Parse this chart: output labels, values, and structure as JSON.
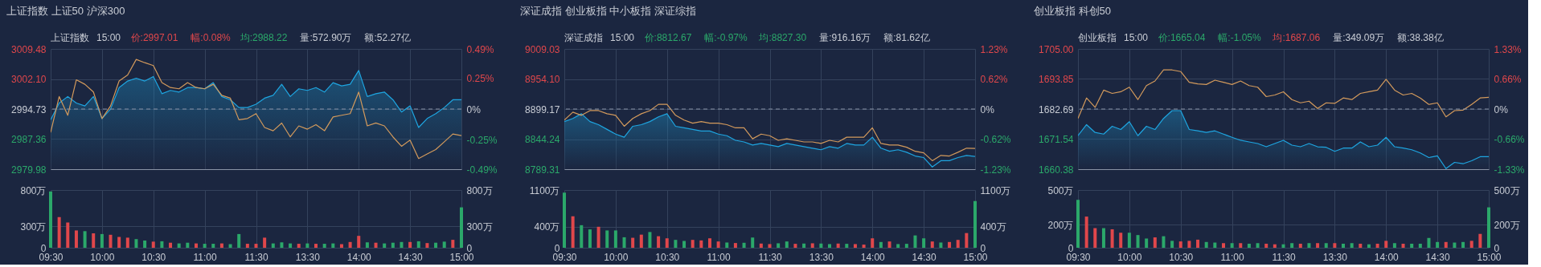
{
  "chart_data": [
    {
      "type": "line",
      "title": "上证指数   上证50   沪深300",
      "annotations": [
        "上证指数",
        "15:00",
        "价:2997.01",
        "幅:0.08%",
        "均:2988.22",
        "量:572.90万",
        "额:52.27亿"
      ],
      "categories": [
        null,
        null,
        null,
        null,
        null,
        null,
        null,
        null,
        null,
        null,
        null,
        null,
        null,
        null,
        null,
        null,
        null,
        null,
        null,
        null,
        null,
        null,
        null,
        null,
        null,
        null,
        null,
        null,
        null,
        null,
        null,
        null,
        null,
        null,
        null,
        null,
        null,
        null,
        null,
        null,
        null,
        null,
        null,
        null,
        null,
        null,
        null,
        null,
        null
      ],
      "series": [
        {
          "type": "area",
          "color": "#1ea5e0",
          "values": [
            2992.1,
            2996.2,
            2997.8,
            2996.2,
            2995.5,
            2997.8,
            2992.4,
            2994.7,
            3000.0,
            3001.6,
            3002.3,
            3001.6,
            3002.7,
            2998.5,
            2999.3,
            2998.9,
            3000.0,
            3000.0,
            2999.7,
            3001.2,
            2997.8,
            2997.0,
            2995.1,
            2995.1,
            2995.9,
            2997.4,
            2998.1,
            3000.8,
            2997.8,
            2999.7,
            2999.3,
            3000.0,
            2998.9,
            3001.2,
            3000.4,
            3000.8,
            3004.2,
            2997.8,
            2998.5,
            2998.9,
            2997.0,
            2994.0,
            2995.5,
            2990.2,
            2992.4,
            2993.6,
            2995.1,
            2997.0,
            2997.01
          ]
        },
        {
          "type": "line",
          "color": "#d39a5c",
          "values": [
            2989.0,
            2997.8,
            2993.2,
            3001.9,
            3000.8,
            2998.9,
            2992.4,
            2995.5,
            3001.6,
            3003.1,
            3006.9,
            3006.1,
            3005.4,
            3001.2,
            3000.0,
            2999.7,
            3001.2,
            3000.0,
            2999.7,
            3000.8,
            2998.1,
            2997.4,
            2992.1,
            2992.4,
            2993.6,
            2990.2,
            2989.4,
            2991.3,
            2987.9,
            2990.6,
            2989.8,
            2990.9,
            2989.4,
            2992.8,
            2993.2,
            2993.6,
            2998.9,
            2990.6,
            2991.3,
            2990.6,
            2987.9,
            2985.6,
            2987.1,
            2982.6,
            2983.7,
            2984.8,
            2986.7,
            2988.6,
            2988.22
          ]
        }
      ],
      "ylim": [
        2979.98,
        3009.48
      ],
      "yticks": [
        2979.98,
        2987.36,
        2994.73,
        {
          "value": 3002.1,
          "label": "3002.10"
        },
        3009.48
      ],
      "y2lim": [
        -0.49,
        0.49
      ],
      "y2ticks": [
        {
          "value": -0.49,
          "label": "-0.49%"
        },
        {
          "value": -0.25,
          "label": "-0.25%"
        },
        {
          "value": 0,
          "label": "0%"
        },
        {
          "value": 0.25,
          "label": "0.25%"
        },
        {
          "value": 0.49,
          "label": "0.49%"
        }
      ],
      "ref_lines": [
        {
          "axis": "y",
          "value": 2994.73,
          "line_style": "dashed",
          "color": "#8a93a6"
        }
      ],
      "grid": true,
      "tick_labels": "y"
    },
    {
      "type": "bar",
      "categories": [
        "09:30",
        null,
        null,
        null,
        null,
        null,
        "10:00",
        null,
        null,
        null,
        null,
        null,
        "10:30",
        null,
        null,
        null,
        null,
        null,
        "11:00",
        null,
        null,
        null,
        null,
        null,
        "11:30",
        null,
        null,
        null,
        null,
        null,
        "13:30",
        null,
        null,
        null,
        null,
        null,
        "14:00",
        null,
        null,
        null,
        null,
        null,
        "14:30",
        null,
        null,
        null,
        null,
        null,
        "15:00"
      ],
      "values": [
        780,
        425,
        350,
        240,
        230,
        200,
        190,
        180,
        150,
        140,
        120,
        100,
        85,
        90,
        70,
        60,
        70,
        60,
        55,
        55,
        60,
        50,
        190,
        55,
        55,
        140,
        60,
        75,
        60,
        55,
        60,
        55,
        55,
        60,
        50,
        80,
        165,
        75,
        70,
        60,
        70,
        80,
        80,
        90,
        65,
        70,
        85,
        110,
        560
      ],
      "colors": [
        "#2ba86a",
        "#e0474b",
        "#e0474b",
        "#e0474b",
        "#2ba86a",
        "#e0474b",
        "#2ba86a",
        "#e0474b",
        "#e0474b",
        "#e0474b",
        "#2ba86a",
        "#2ba86a",
        "#e0474b",
        "#2ba86a",
        "#e0474b",
        "#2ba86a",
        "#2ba86a",
        "#e0474b",
        "#2ba86a",
        "#2ba86a",
        "#e0474b",
        "#2ba86a",
        "#2ba86a",
        "#e0474b",
        "#e0474b",
        "#e0474b",
        "#2ba86a",
        "#2ba86a",
        "#2ba86a",
        "#e0474b",
        "#2ba86a",
        "#e0474b",
        "#2ba86a",
        "#2ba86a",
        "#e0474b",
        "#e0474b",
        "#e0474b",
        "#2ba86a",
        "#e0474b",
        "#2ba86a",
        "#2ba86a",
        "#2ba86a",
        "#e0474b",
        "#2ba86a",
        "#e0474b",
        "#2ba86a",
        "#2ba86a",
        "#e0474b",
        "#2ba86a"
      ],
      "ylim": [
        0,
        800
      ],
      "yticks": [
        0,
        {
          "value": 300,
          "label": "300万"
        },
        {
          "value": 800,
          "label": "800万"
        }
      ],
      "y2lim": [
        0,
        800
      ],
      "y2ticks": [
        0,
        {
          "value": 300,
          "label": "300万"
        },
        {
          "value": 800,
          "label": "800万"
        }
      ],
      "grid": true
    },
    {
      "type": "line",
      "title": "深证成指   创业板指   中小板指   深证综指",
      "annotations": [
        "深证成指",
        "15:00",
        "价:8812.67",
        "幅:-0.97%",
        "均:8827.30",
        "量:916.16万",
        "额:81.62亿"
      ],
      "categories": [
        null,
        null,
        null,
        null,
        null,
        null,
        null,
        null,
        null,
        null,
        null,
        null,
        null,
        null,
        null,
        null,
        null,
        null,
        null,
        null,
        null,
        null,
        null,
        null,
        null,
        null,
        null,
        null,
        null,
        null,
        null,
        null,
        null,
        null,
        null,
        null,
        null,
        null,
        null,
        null,
        null,
        null,
        null,
        null,
        null,
        null,
        null,
        null,
        null
      ],
      "series": [
        {
          "type": "area",
          "color": "#1ea5e0",
          "values": [
            8876.3,
            8882.0,
            8890.6,
            8876.3,
            8870.6,
            8862.0,
            8853.4,
            8847.7,
            8867.7,
            8870.6,
            8876.3,
            8884.9,
            8890.6,
            8867.7,
            8864.8,
            8862.0,
            8859.1,
            8859.1,
            8853.4,
            8850.5,
            8842.0,
            8839.1,
            8833.4,
            8836.3,
            8833.4,
            8830.5,
            8836.3,
            8833.4,
            8830.5,
            8827.7,
            8824.8,
            8830.5,
            8827.7,
            8836.3,
            8833.4,
            8833.4,
            8847.7,
            8827.7,
            8822.0,
            8824.8,
            8820.2,
            8813.4,
            8810.5,
            8793.3,
            8804.8,
            8804.8,
            8810.5,
            8814.5,
            8812.67
          ]
        },
        {
          "type": "line",
          "color": "#d39a5c",
          "values": [
            8879.1,
            8893.5,
            8887.7,
            8896.3,
            8896.3,
            8890.6,
            8887.7,
            8867.7,
            8882.0,
            8890.6,
            8896.3,
            8907.8,
            8907.8,
            8887.7,
            8879.1,
            8873.4,
            8876.3,
            8873.4,
            8873.4,
            8870.6,
            8864.8,
            8864.8,
            8844.8,
            8853.4,
            8850.5,
            8842.0,
            8844.8,
            8842.0,
            8839.1,
            8839.1,
            8836.3,
            8842.0,
            8839.1,
            8847.7,
            8847.7,
            8847.7,
            8864.8,
            8836.3,
            8833.4,
            8833.4,
            8829.4,
            8822.0,
            8819.1,
            8804.8,
            8814.5,
            8813.4,
            8820.2,
            8827.7,
            8827.3
          ]
        }
      ],
      "ylim": [
        8789.31,
        9009.03
      ],
      "yticks": [
        8789.31,
        8844.24,
        8899.17,
        {
          "value": 8954.1,
          "label": "8954.10"
        },
        9009.03
      ],
      "y2lim": [
        -1.23,
        1.23
      ],
      "y2ticks": [
        {
          "value": -1.23,
          "label": "-1.23%"
        },
        {
          "value": -0.62,
          "label": "-0.62%"
        },
        {
          "value": 0,
          "label": "0%"
        },
        {
          "value": 0.62,
          "label": "0.62%"
        },
        {
          "value": 1.23,
          "label": "1.23%"
        }
      ],
      "ref_lines": [
        {
          "axis": "y",
          "value": 8899.17,
          "line_style": "dashed",
          "color": "#8a93a6"
        }
      ],
      "grid": true,
      "tick_labels": "y"
    },
    {
      "type": "bar",
      "categories": [
        "09:30",
        null,
        null,
        null,
        null,
        null,
        "10:00",
        null,
        null,
        null,
        null,
        null,
        "10:30",
        null,
        null,
        null,
        null,
        null,
        "11:00",
        null,
        null,
        null,
        null,
        null,
        "11:30",
        null,
        null,
        null,
        null,
        null,
        "13:30",
        null,
        null,
        null,
        null,
        null,
        "14:00",
        null,
        null,
        null,
        null,
        null,
        "14:30",
        null,
        null,
        null,
        null,
        null,
        "15:00"
      ],
      "values": [
        1050,
        600,
        430,
        350,
        400,
        330,
        330,
        200,
        190,
        250,
        300,
        220,
        180,
        150,
        130,
        150,
        140,
        180,
        120,
        100,
        90,
        95,
        195,
        80,
        70,
        85,
        120,
        75,
        80,
        85,
        80,
        70,
        80,
        75,
        70,
        60,
        180,
        110,
        120,
        70,
        75,
        235,
        180,
        120,
        100,
        110,
        150,
        280,
        890
      ],
      "colors": [
        "#2ba86a",
        "#e0474b",
        "#2ba86a",
        "#2ba86a",
        "#e0474b",
        "#2ba86a",
        "#2ba86a",
        "#2ba86a",
        "#e0474b",
        "#e0474b",
        "#2ba86a",
        "#e0474b",
        "#e0474b",
        "#2ba86a",
        "#2ba86a",
        "#e0474b",
        "#e0474b",
        "#e0474b",
        "#e0474b",
        "#2ba86a",
        "#e0474b",
        "#2ba86a",
        "#2ba86a",
        "#e0474b",
        "#e0474b",
        "#2ba86a",
        "#2ba86a",
        "#e0474b",
        "#2ba86a",
        "#e0474b",
        "#2ba86a",
        "#2ba86a",
        "#e0474b",
        "#2ba86a",
        "#e0474b",
        "#e0474b",
        "#e0474b",
        "#2ba86a",
        "#e0474b",
        "#2ba86a",
        "#2ba86a",
        "#2ba86a",
        "#2ba86a",
        "#e0474b",
        "#2ba86a",
        "#e0474b",
        "#e0474b",
        "#e0474b",
        "#2ba86a"
      ],
      "ylim": [
        0,
        1100
      ],
      "yticks": [
        0,
        {
          "value": 400,
          "label": "400万"
        },
        {
          "value": 1100,
          "label": "1100万"
        }
      ],
      "y2lim": [
        0,
        1100
      ],
      "y2ticks": [
        0,
        {
          "value": 400,
          "label": "400万"
        },
        {
          "value": 1100,
          "label": "1100万"
        }
      ],
      "grid": true
    },
    {
      "type": "line",
      "title": "创业板指   科创50",
      "annotations": [
        "创业板指",
        "15:00",
        "价:1665.04",
        "幅:-1.05%",
        "均:1687.06",
        "量:349.09万",
        "额:38.38亿"
      ],
      "categories": [
        null,
        null,
        null,
        null,
        null,
        null,
        null,
        null,
        null,
        null,
        null,
        null,
        null,
        null,
        null,
        null,
        null,
        null,
        null,
        null,
        null,
        null,
        null,
        null,
        null,
        null,
        null,
        null,
        null,
        null,
        null,
        null,
        null,
        null,
        null,
        null,
        null,
        null,
        null,
        null,
        null,
        null,
        null,
        null,
        null,
        null,
        null,
        null,
        null
      ],
      "series": [
        {
          "type": "area",
          "color": "#1ea5e0",
          "values": [
            1672.8,
            1676.9,
            1674.0,
            1673.4,
            1676.3,
            1675.1,
            1678.0,
            1672.8,
            1676.3,
            1675.1,
            1679.2,
            1682.1,
            1682.1,
            1675.1,
            1674.6,
            1674.0,
            1674.6,
            1673.4,
            1672.2,
            1671.1,
            1670.5,
            1669.9,
            1668.7,
            1669.9,
            1671.1,
            1669.3,
            1668.7,
            1669.9,
            1668.7,
            1668.5,
            1667.0,
            1668.2,
            1668.2,
            1670.5,
            1668.7,
            1669.3,
            1672.2,
            1668.7,
            1668.2,
            1667.6,
            1666.4,
            1664.7,
            1665.3,
            1660.6,
            1662.9,
            1662.4,
            1663.5,
            1665.0,
            1665.04
          ]
        },
        {
          "type": "line",
          "color": "#d39a5c",
          "values": [
            1679.2,
            1686.8,
            1683.3,
            1689.7,
            1688.5,
            1689.1,
            1690.8,
            1686.2,
            1691.4,
            1693.1,
            1697.2,
            1697.2,
            1696.6,
            1692.6,
            1692.0,
            1691.8,
            1693.4,
            1692.6,
            1691.8,
            1693.1,
            1691.4,
            1690.8,
            1687.3,
            1687.9,
            1689.1,
            1686.2,
            1685.0,
            1685.6,
            1682.9,
            1685.0,
            1684.8,
            1686.8,
            1686.2,
            1688.5,
            1689.1,
            1689.7,
            1693.7,
            1689.7,
            1687.9,
            1688.5,
            1686.8,
            1684.4,
            1685.0,
            1679.8,
            1682.1,
            1682.3,
            1684.4,
            1686.8,
            1687.06
          ]
        }
      ],
      "ylim": [
        1660.38,
        1705
      ],
      "yticks": [
        1660.38,
        1671.54,
        1682.69,
        1693.85,
        {
          "value": 1705,
          "label": "1705.00"
        }
      ],
      "y2lim": [
        -1.33,
        1.33
      ],
      "y2ticks": [
        {
          "value": -1.33,
          "label": "-1.33%"
        },
        {
          "value": -0.66,
          "label": "-0.66%"
        },
        {
          "value": 0,
          "label": "0%"
        },
        {
          "value": 0.66,
          "label": "0.66%"
        },
        {
          "value": 1.33,
          "label": "1.33%"
        }
      ],
      "ref_lines": [
        {
          "axis": "y",
          "value": 1682.69,
          "line_style": "dashed",
          "color": "#8a93a6"
        }
      ],
      "grid": true,
      "tick_labels": "y"
    },
    {
      "type": "bar",
      "categories": [
        "09:30",
        null,
        null,
        null,
        null,
        null,
        "10:00",
        null,
        null,
        null,
        null,
        null,
        "10:30",
        null,
        null,
        null,
        null,
        null,
        "11:00",
        null,
        null,
        null,
        null,
        null,
        "11:30",
        null,
        null,
        null,
        null,
        null,
        "13:30",
        null,
        null,
        null,
        null,
        null,
        "14:00",
        null,
        null,
        null,
        null,
        null,
        "14:30",
        null,
        null,
        null,
        null,
        null,
        "15:00"
      ],
      "values": [
        415,
        270,
        170,
        170,
        160,
        130,
        130,
        110,
        80,
        90,
        100,
        60,
        55,
        60,
        70,
        50,
        45,
        40,
        40,
        40,
        35,
        40,
        35,
        30,
        30,
        40,
        35,
        40,
        40,
        40,
        40,
        35,
        40,
        35,
        30,
        35,
        60,
        40,
        35,
        35,
        35,
        85,
        50,
        50,
        45,
        50,
        60,
        120,
        350
      ],
      "colors": [
        "#2ba86a",
        "#e0474b",
        "#e0474b",
        "#2ba86a",
        "#e0474b",
        "#e0474b",
        "#2ba86a",
        "#2ba86a",
        "#2ba86a",
        "#e0474b",
        "#2ba86a",
        "#2ba86a",
        "#e0474b",
        "#e0474b",
        "#e0474b",
        "#2ba86a",
        "#2ba86a",
        "#e0474b",
        "#2ba86a",
        "#e0474b",
        "#2ba86a",
        "#2ba86a",
        "#e0474b",
        "#e0474b",
        "#2ba86a",
        "#2ba86a",
        "#e0474b",
        "#2ba86a",
        "#e0474b",
        "#2ba86a",
        "#e0474b",
        "#2ba86a",
        "#2ba86a",
        "#e0474b",
        "#2ba86a",
        "#e0474b",
        "#e0474b",
        "#2ba86a",
        "#e0474b",
        "#2ba86a",
        "#2ba86a",
        "#2ba86a",
        "#2ba86a",
        "#e0474b",
        "#2ba86a",
        "#2ba86a",
        "#e0474b",
        "#e0474b",
        "#2ba86a"
      ],
      "ylim": [
        0,
        500
      ],
      "yticks": [
        0,
        {
          "value": 200,
          "label": "200万"
        },
        {
          "value": 500,
          "label": "500万"
        }
      ],
      "y2lim": [
        0,
        500
      ],
      "y2ticks": [
        0,
        {
          "value": 200,
          "label": "200万"
        },
        {
          "value": 500,
          "label": "500万"
        }
      ],
      "grid": true
    }
  ]
}
